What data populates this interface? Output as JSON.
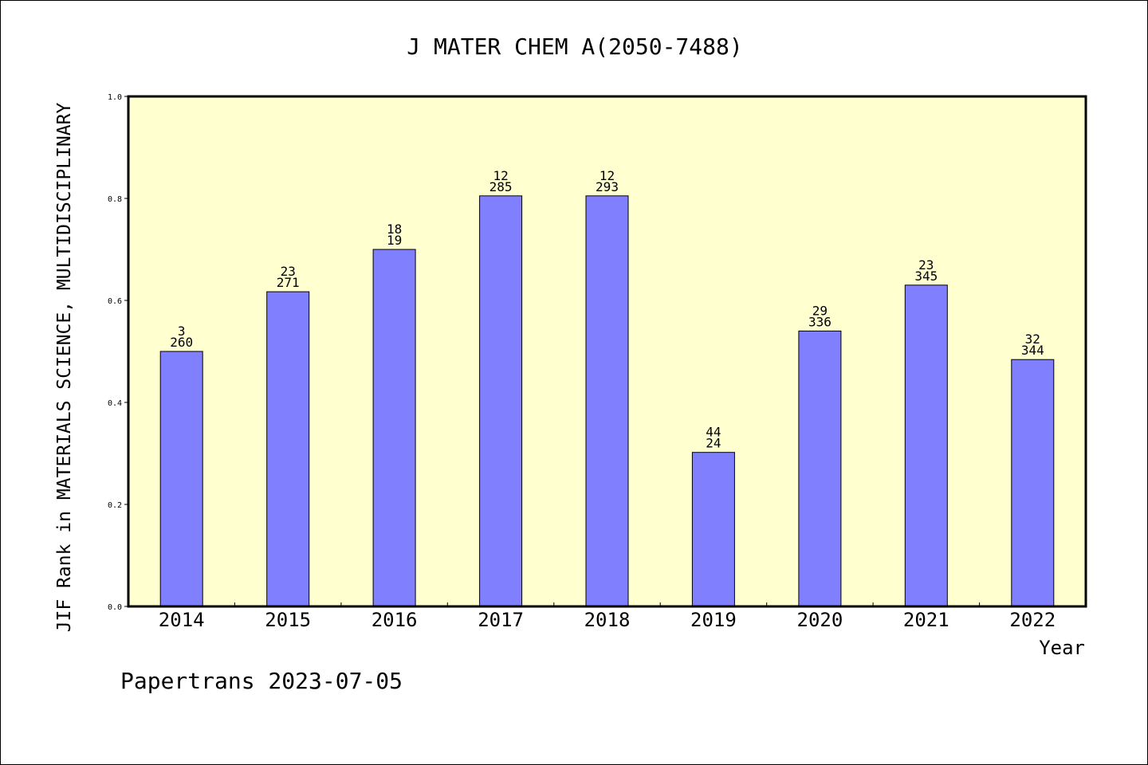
{
  "chart_data": {
    "type": "bar",
    "title": "J MATER CHEM A(2050-7488)",
    "xlabel": "Year",
    "ylabel": "JIF Rank in MATERIALS SCIENCE, MULTIDISCIPLINARY",
    "ylim": [
      0,
      1.0
    ],
    "yticks": [
      "0.0",
      "0.2",
      "0.4",
      "0.6",
      "0.8",
      "1.0"
    ],
    "categories": [
      "2014",
      "2015",
      "2016",
      "2017",
      "2018",
      "2019",
      "2020",
      "2021",
      "2022"
    ],
    "values": [
      0.5,
      0.617,
      0.7,
      0.805,
      0.805,
      0.302,
      0.54,
      0.63,
      0.484
    ],
    "labels_top": [
      "3",
      "23",
      "18",
      "12",
      "12",
      "44",
      "29",
      "23",
      "32"
    ],
    "labels_bottom": [
      "260",
      "271",
      "19",
      "285",
      "293",
      "24",
      "336",
      "345",
      "344"
    ],
    "grid": false,
    "colors": {
      "plot_background": "#ffffd0",
      "bar_fill": "#8080ff",
      "bar_stroke": "#000000"
    }
  },
  "footer": "Papertrans 2023-07-05"
}
